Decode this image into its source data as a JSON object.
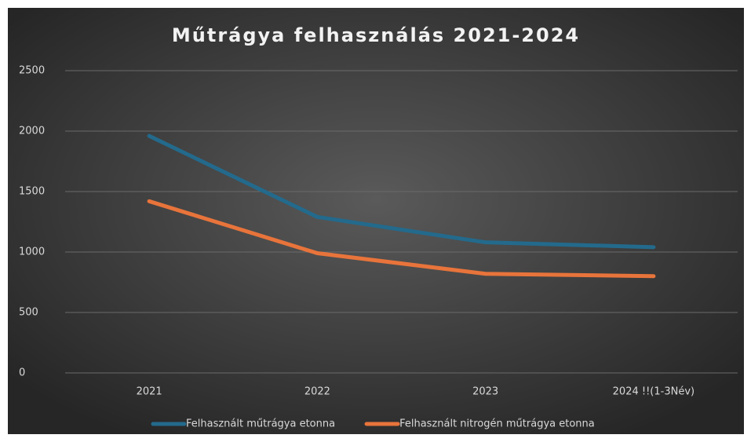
{
  "chart_data": {
    "type": "line",
    "title": "Műtrágya felhasználás 2021-2024",
    "categories": [
      "2021",
      "2022",
      "2023",
      "2024 !!(1-3Név)"
    ],
    "series": [
      {
        "name": "Felhasznált műtrágya etonna",
        "color": "#236a8c",
        "values": [
          1960,
          1290,
          1080,
          1040
        ]
      },
      {
        "name": "Felhasznált nitrogén műtrágya etonna",
        "color": "#e8743b",
        "values": [
          1420,
          990,
          820,
          800
        ]
      }
    ],
    "ylim": [
      0,
      2500
    ],
    "yticks": [
      0,
      500,
      1000,
      1500,
      2000,
      2500
    ],
    "grid": true,
    "legend": "bottom"
  }
}
